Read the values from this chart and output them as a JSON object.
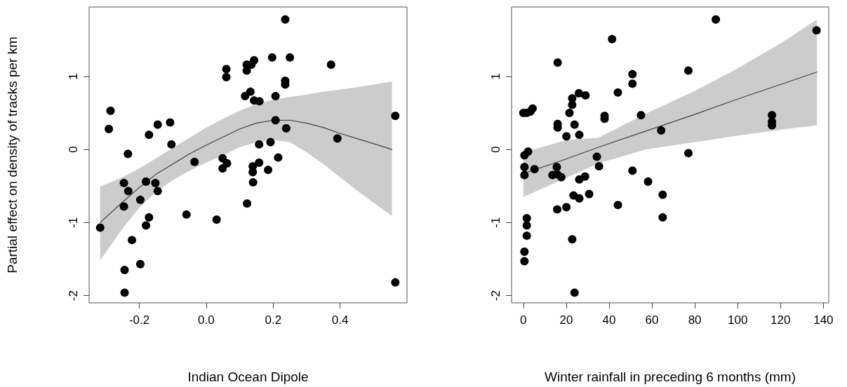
{
  "chart_data": [
    {
      "type": "scatter",
      "xlabel": "Indian Ocean Dipole",
      "ylabel": "Partial effect on density of tracks per km",
      "xlim": [
        -0.35,
        0.6
      ],
      "ylim": [
        -2.1,
        1.95
      ],
      "xticks": [
        -0.2,
        {
          "value": 0,
          "label": "0.0"
        },
        0.2,
        0.4
      ],
      "yticks": [
        -2,
        -1,
        0,
        1
      ],
      "grid": false,
      "line_style": "solid",
      "series": [
        {
          "marker": "circle",
          "color": "#000000",
          "x": [
            -0.317,
            -0.286,
            -0.291,
            -0.234,
            -0.246,
            -0.233,
            -0.246,
            -0.244,
            -0.244,
            -0.222,
            -0.197,
            -0.197,
            -0.18,
            -0.171,
            -0.18,
            -0.171,
            -0.145,
            -0.152,
            -0.145,
            -0.108,
            -0.104,
            -0.059,
            -0.035,
            0.031,
            0.049,
            0.049,
            0.062,
            0.06,
            0.06,
            0.236,
            0.197,
            0.25,
            0.143,
            0.121,
            0.135,
            0.121,
            0.373,
            0.236,
            0.236,
            0.132,
            0.116,
            0.207,
            0.143,
            0.159,
            0.207,
            0.565,
            0.239,
            0.392,
            0.158,
            0.192,
            0.215,
            0.158,
            0.139,
            0.139,
            0.185,
            0.14,
            0.122,
            0.565
          ],
          "values": [
            -1.07,
            0.53,
            0.28,
            -0.06,
            -0.46,
            -0.57,
            -0.78,
            -1.65,
            -1.96,
            -1.24,
            -0.69,
            -1.57,
            -0.44,
            -0.93,
            -1.04,
            0.2,
            0.34,
            -0.46,
            -0.57,
            0.37,
            0.07,
            -0.89,
            -0.17,
            -0.96,
            -0.12,
            -0.26,
            -0.19,
            1.1,
            0.99,
            1.78,
            1.26,
            1.26,
            1.22,
            1.16,
            1.16,
            1.08,
            1.16,
            0.94,
            0.89,
            0.79,
            0.73,
            0.73,
            0.67,
            0.66,
            0.4,
            0.46,
            0.29,
            0.15,
            0.07,
            0.1,
            -0.11,
            -0.18,
            -0.23,
            -0.31,
            -0.28,
            -0.45,
            -0.74,
            -1.82
          ]
        },
        {
          "type": "line",
          "marker": "none",
          "color": "#404040",
          "x": [
            -0.317,
            -0.25,
            -0.2,
            -0.15,
            -0.1,
            -0.05,
            0,
            0.05,
            0.1,
            0.15,
            0.2,
            0.25,
            0.3,
            0.35,
            0.4,
            0.45,
            0.5,
            0.555
          ],
          "values": [
            -1.0,
            -0.72,
            -0.52,
            -0.34,
            -0.2,
            -0.06,
            0.06,
            0.17,
            0.28,
            0.36,
            0.4,
            0.4,
            0.36,
            0.3,
            0.22,
            0.15,
            0.08,
            0.0
          ],
          "upper": [
            -0.51,
            -0.38,
            -0.26,
            -0.12,
            0.02,
            0.16,
            0.3,
            0.42,
            0.53,
            0.62,
            0.68,
            0.72,
            0.75,
            0.79,
            0.82,
            0.85,
            0.89,
            0.93
          ],
          "lower": [
            -1.52,
            -1.08,
            -0.8,
            -0.58,
            -0.42,
            -0.29,
            -0.18,
            -0.08,
            0.03,
            0.1,
            0.13,
            0.1,
            -0.04,
            -0.2,
            -0.38,
            -0.56,
            -0.73,
            -0.91
          ]
        }
      ]
    },
    {
      "type": "scatter",
      "xlabel": "Winter rainfall in preceding 6 months (mm)",
      "xlim": [
        -5.5,
        142.5
      ],
      "ylim": [
        -2.1,
        1.95
      ],
      "xticks": [
        0,
        20,
        40,
        60,
        80,
        100,
        120,
        140
      ],
      "yticks": [
        -2,
        -1,
        0,
        1
      ],
      "grid": false,
      "line_style": "solid",
      "series": [
        {
          "marker": "circle",
          "color": "#000000",
          "x": [
            41.4,
            16,
            50.9,
            50.9,
            44.1,
            25.9,
            29,
            22.8,
            22.8,
            0,
            1.6,
            3.3,
            4.3,
            21.5,
            37.9,
            37.9,
            54.9,
            16,
            16,
            23.9,
            20.1,
            26.1,
            2.2,
            0.5,
            0.5,
            0.5,
            5.2,
            34.3,
            35.3,
            15.6,
            13.6,
            15.8,
            17.7,
            26.1,
            28.8,
            50.9,
            58.2,
            23.4,
            26.1,
            30.7,
            44.1,
            15.8,
            20.1,
            1.6,
            1.6,
            1.6,
            0.5,
            0.5,
            22.8,
            23.9,
            89.8,
            136.8,
            77,
            116,
            116,
            116,
            64.3,
            77,
            65,
            65
          ],
          "values": [
            1.51,
            1.19,
            1.03,
            0.9,
            0.78,
            0.77,
            0.74,
            0.7,
            0.61,
            0.5,
            0.5,
            0.52,
            0.56,
            0.5,
            0.46,
            0.42,
            0.47,
            0.35,
            0.3,
            0.34,
            0.18,
            0.2,
            -0.03,
            -0.08,
            -0.24,
            -0.35,
            -0.27,
            -0.1,
            -0.23,
            -0.24,
            -0.35,
            -0.34,
            -0.38,
            -0.41,
            -0.37,
            -0.29,
            -0.44,
            -0.63,
            -0.67,
            -0.61,
            -0.76,
            -0.82,
            -0.79,
            -0.94,
            -1.04,
            -1.18,
            -1.4,
            -1.53,
            -1.23,
            -1.96,
            1.78,
            1.63,
            1.08,
            0.47,
            0.38,
            0.33,
            0.26,
            -0.05,
            -0.62,
            -0.93
          ]
        },
        {
          "type": "line",
          "marker": "none",
          "color": "#404040",
          "x": [
            0,
            20,
            35,
            57,
            80,
            100,
            120,
            137
          ],
          "values": [
            -0.33,
            -0.13,
            0.03,
            0.25,
            0.48,
            0.69,
            0.89,
            1.06
          ],
          "upper": [
            -0.04,
            0.13,
            0.16,
            0.49,
            0.8,
            1.11,
            1.45,
            1.78
          ],
          "lower": [
            -0.65,
            -0.39,
            -0.19,
            0.0,
            0.1,
            0.19,
            0.27,
            0.33
          ]
        }
      ]
    }
  ]
}
